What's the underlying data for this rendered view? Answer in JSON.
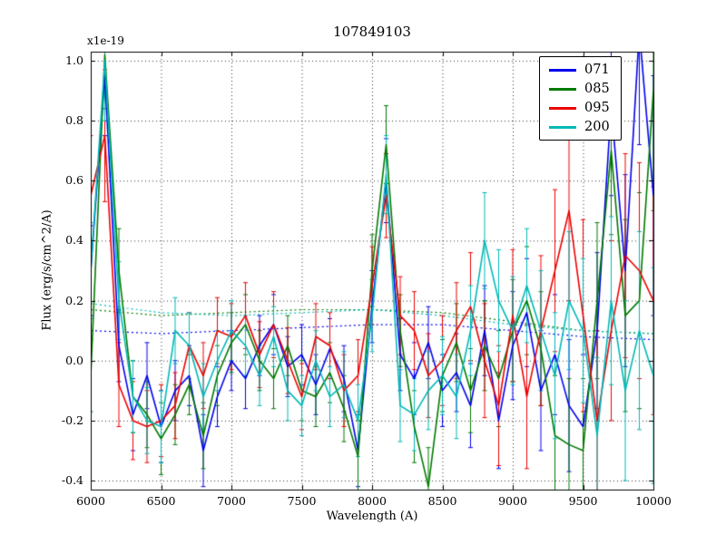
{
  "figure": {
    "title": "107849103",
    "offset_label": "x1e-19",
    "xlabel": "Wavelength (A)",
    "ylabel": "Flux (erg/s/cm^2/A)"
  },
  "chart_data": {
    "type": "line",
    "title": "107849103",
    "xlabel": "Wavelength (A)",
    "ylabel": "Flux (erg/s/cm^2/A)",
    "y_offset_label": "x1e-19",
    "y_unit_scale": "1e-19",
    "xlim": [
      6000,
      10000
    ],
    "ylim": [
      -0.43,
      1.03
    ],
    "xticks": [
      6000,
      6500,
      7000,
      7500,
      8000,
      8500,
      9000,
      9500,
      10000
    ],
    "yticks": [
      -0.4,
      -0.2,
      0.0,
      0.2,
      0.4,
      0.6,
      0.8,
      1.0
    ],
    "grid": true,
    "grid_style": "dotted",
    "legend_position": "upper right",
    "error_bars": true,
    "x": [
      6000,
      6100,
      6200,
      6300,
      6400,
      6500,
      6600,
      6700,
      6800,
      6900,
      7000,
      7100,
      7200,
      7300,
      7400,
      7500,
      7600,
      7700,
      7800,
      7900,
      8000,
      8100,
      8200,
      8300,
      8400,
      8500,
      8600,
      8700,
      8800,
      8900,
      9000,
      9100,
      9200,
      9300,
      9400,
      9500,
      9600,
      9700,
      9800,
      9900,
      10000
    ],
    "series": [
      {
        "name": "071",
        "color": "#0000ee",
        "y": [
          0.3,
          0.95,
          0.05,
          -0.18,
          -0.05,
          -0.22,
          -0.1,
          -0.05,
          -0.3,
          -0.12,
          0.0,
          -0.06,
          0.05,
          0.12,
          -0.02,
          0.02,
          -0.08,
          0.04,
          -0.06,
          -0.3,
          0.18,
          0.6,
          0.02,
          -0.06,
          0.06,
          -0.1,
          -0.04,
          -0.15,
          0.1,
          -0.2,
          0.05,
          0.16,
          -0.1,
          0.02,
          -0.15,
          -0.22,
          0.1,
          0.85,
          0.3,
          1.1,
          0.55
        ],
        "err": [
          0.15,
          0.2,
          0.12,
          0.12,
          0.11,
          0.12,
          0.1,
          0.1,
          0.12,
          0.1,
          0.1,
          0.1,
          0.1,
          0.1,
          0.1,
          0.1,
          0.1,
          0.1,
          0.11,
          0.12,
          0.12,
          0.14,
          0.12,
          0.12,
          0.12,
          0.12,
          0.13,
          0.14,
          0.15,
          0.16,
          0.18,
          0.18,
          0.2,
          0.2,
          0.22,
          0.24,
          0.26,
          0.3,
          0.32,
          0.38,
          0.4
        ]
      },
      {
        "name": "085",
        "color": "#007a00",
        "y": [
          -0.05,
          1.02,
          0.3,
          -0.12,
          -0.18,
          -0.26,
          -0.18,
          -0.08,
          -0.25,
          -0.05,
          0.06,
          0.12,
          0.0,
          -0.06,
          0.05,
          -0.1,
          -0.12,
          -0.04,
          -0.16,
          -0.32,
          0.3,
          0.72,
          0.1,
          -0.22,
          -0.42,
          -0.05,
          0.06,
          -0.1,
          0.05,
          -0.06,
          0.1,
          0.2,
          0.04,
          -0.25,
          -0.28,
          -0.3,
          0.2,
          0.7,
          0.15,
          0.2,
          0.9
        ],
        "err": [
          0.12,
          0.18,
          0.14,
          0.12,
          0.11,
          0.12,
          0.1,
          0.1,
          0.11,
          0.1,
          0.1,
          0.1,
          0.1,
          0.1,
          0.1,
          0.1,
          0.1,
          0.1,
          0.11,
          0.12,
          0.12,
          0.13,
          0.12,
          0.12,
          0.13,
          0.12,
          0.13,
          0.14,
          0.15,
          0.16,
          0.17,
          0.18,
          0.19,
          0.2,
          0.22,
          0.24,
          0.26,
          0.28,
          0.32,
          0.36,
          0.4
        ]
      },
      {
        "name": "095",
        "color": "#ee0000",
        "y": [
          0.55,
          0.75,
          -0.08,
          -0.2,
          -0.22,
          -0.2,
          -0.15,
          0.05,
          -0.05,
          0.1,
          0.08,
          0.15,
          0.02,
          0.12,
          0.0,
          -0.12,
          0.08,
          0.05,
          -0.1,
          -0.05,
          0.25,
          0.55,
          0.15,
          0.1,
          -0.05,
          0.0,
          0.1,
          0.18,
          0.0,
          -0.15,
          0.15,
          -0.12,
          0.1,
          0.3,
          0.5,
          0.15,
          -0.2,
          0.1,
          0.35,
          0.3,
          0.2
        ],
        "err": [
          0.2,
          0.22,
          0.14,
          0.13,
          0.12,
          0.12,
          0.11,
          0.11,
          0.11,
          0.11,
          0.11,
          0.11,
          0.11,
          0.11,
          0.11,
          0.11,
          0.11,
          0.11,
          0.12,
          0.12,
          0.13,
          0.14,
          0.13,
          0.13,
          0.14,
          0.15,
          0.16,
          0.18,
          0.19,
          0.2,
          0.22,
          0.24,
          0.25,
          0.27,
          0.3,
          0.32,
          0.3,
          0.3,
          0.34,
          0.36,
          0.38
        ]
      },
      {
        "name": "200",
        "color": "#00b8b8",
        "y": [
          0.3,
          1.0,
          0.2,
          -0.12,
          -0.2,
          -0.22,
          0.1,
          0.05,
          -0.12,
          0.0,
          0.1,
          0.05,
          -0.05,
          0.08,
          -0.1,
          -0.15,
          0.0,
          -0.12,
          -0.08,
          -0.2,
          0.15,
          0.62,
          -0.15,
          -0.18,
          -0.1,
          -0.05,
          -0.12,
          0.1,
          0.4,
          0.2,
          0.1,
          0.25,
          0.1,
          -0.05,
          0.2,
          0.1,
          -0.25,
          0.2,
          -0.1,
          0.1,
          -0.05
        ],
        "err": [
          0.16,
          0.2,
          0.13,
          0.12,
          0.11,
          0.12,
          0.11,
          0.11,
          0.11,
          0.1,
          0.1,
          0.1,
          0.1,
          0.1,
          0.1,
          0.1,
          0.1,
          0.1,
          0.11,
          0.12,
          0.12,
          0.13,
          0.12,
          0.12,
          0.13,
          0.13,
          0.14,
          0.15,
          0.16,
          0.17,
          0.18,
          0.19,
          0.2,
          0.21,
          0.23,
          0.24,
          0.26,
          0.28,
          0.3,
          0.33,
          0.36
        ]
      }
    ],
    "dotted_series": [
      {
        "name": "071-continuum",
        "color": "#0000ee",
        "x": [
          6000,
          6500,
          7000,
          7500,
          8000,
          8500,
          9000,
          9500,
          10000
        ],
        "y": [
          0.1,
          0.09,
          0.1,
          0.11,
          0.12,
          0.12,
          0.1,
          0.08,
          0.07
        ]
      },
      {
        "name": "085-continuum",
        "color": "#007a00",
        "x": [
          6000,
          6500,
          7000,
          7500,
          8000,
          8500,
          9000,
          9500,
          10000
        ],
        "y": [
          0.17,
          0.15,
          0.16,
          0.17,
          0.17,
          0.16,
          0.13,
          0.1,
          0.09
        ]
      },
      {
        "name": "200-continuum",
        "color": "#00b8b8",
        "x": [
          6000,
          6500,
          7000,
          7500,
          8000,
          8500,
          9000,
          9500,
          10000
        ],
        "y": [
          0.19,
          0.16,
          0.15,
          0.16,
          0.17,
          0.15,
          0.12,
          0.1,
          0.09
        ]
      }
    ]
  }
}
